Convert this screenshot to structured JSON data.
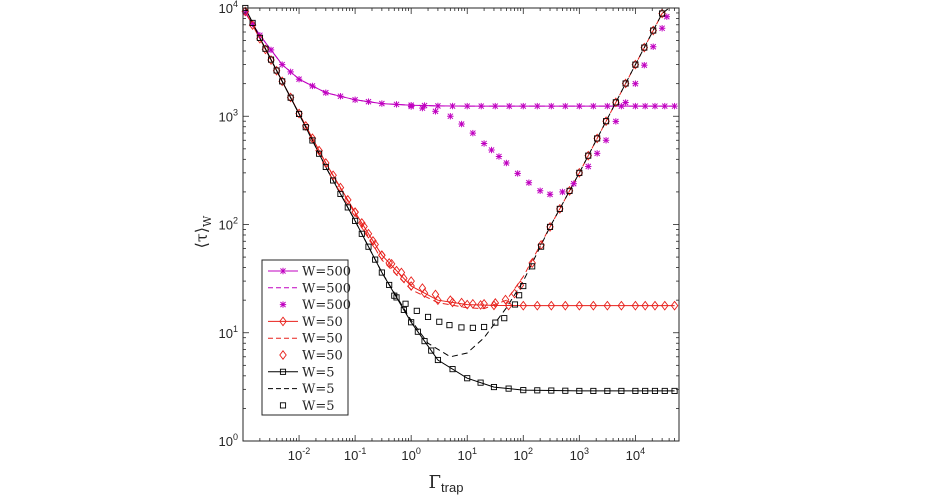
{
  "chart_data": {
    "type": "line",
    "title": "",
    "xlabel": "Γ",
    "xlabel_sub": "trap",
    "ylabel": "⟨τ⟩",
    "ylabel_sub": "W",
    "xscale": "log",
    "yscale": "log",
    "xlim": [
      0.001,
      60000
    ],
    "ylim": [
      1,
      10000
    ],
    "x_ticks": [
      {
        "base": "10",
        "exp": "-2",
        "value": 0.01
      },
      {
        "base": "10",
        "exp": "-1",
        "value": 0.1
      },
      {
        "base": "10",
        "exp": "0",
        "value": 1
      },
      {
        "base": "10",
        "exp": "1",
        "value": 10
      },
      {
        "base": "10",
        "exp": "2",
        "value": 100
      },
      {
        "base": "10",
        "exp": "3",
        "value": 1000
      },
      {
        "base": "10",
        "exp": "4",
        "value": 10000
      }
    ],
    "y_ticks": [
      {
        "base": "10",
        "exp": "0",
        "value": 1
      },
      {
        "base": "10",
        "exp": "1",
        "value": 10
      },
      {
        "base": "10",
        "exp": "2",
        "value": 100
      },
      {
        "base": "10",
        "exp": "3",
        "value": 1000
      },
      {
        "base": "10",
        "exp": "4",
        "value": 10000
      }
    ],
    "grid": false,
    "legend_position": "bottom-left",
    "series": [
      {
        "name": "W=500",
        "style": "solid",
        "marker": "asterisk",
        "color": "#c000c0",
        "points": [
          [
            0.0011,
            9000
          ],
          [
            0.002,
            5600
          ],
          [
            0.005,
            3000
          ],
          [
            0.01,
            2200
          ],
          [
            0.03,
            1650
          ],
          [
            0.1,
            1420
          ],
          [
            0.3,
            1310
          ],
          [
            1,
            1265
          ],
          [
            3,
            1245
          ],
          [
            10,
            1240
          ],
          [
            100,
            1240
          ],
          [
            1000,
            1240
          ],
          [
            10000,
            1240
          ],
          [
            50000,
            1240
          ]
        ]
      },
      {
        "name": "W=500",
        "style": "dashed",
        "marker": "none",
        "color": "#c000c0",
        "points": [
          [
            0.0011,
            9000
          ],
          [
            0.002,
            5600
          ],
          [
            0.005,
            3000
          ],
          [
            0.01,
            2200
          ],
          [
            0.03,
            1650
          ],
          [
            0.1,
            1420
          ],
          [
            0.3,
            1310
          ],
          [
            1,
            1265
          ],
          [
            3,
            1245
          ],
          [
            10,
            1240
          ],
          [
            100,
            1240
          ],
          [
            1000,
            1240
          ],
          [
            10000,
            1240
          ],
          [
            50000,
            1240
          ]
        ]
      },
      {
        "name": "W=500",
        "style": "none",
        "marker": "asterisk",
        "color": "#c000c0",
        "points": [
          [
            1,
            1230
          ],
          [
            2,
            1170
          ],
          [
            5,
            1000
          ],
          [
            10,
            780
          ],
          [
            20,
            560
          ],
          [
            50,
            370
          ],
          [
            100,
            265
          ],
          [
            200,
            205
          ],
          [
            300,
            190
          ],
          [
            500,
            200
          ],
          [
            1000,
            260
          ],
          [
            3000,
            600
          ],
          [
            10000,
            2000
          ],
          [
            30000,
            6500
          ],
          [
            40000,
            9400
          ]
        ]
      },
      {
        "name": "W=50",
        "style": "solid",
        "marker": "diamond",
        "color": "#e8211c",
        "points": [
          [
            0.0011,
            9300
          ],
          [
            0.002,
            5200
          ],
          [
            0.005,
            2100
          ],
          [
            0.01,
            1060
          ],
          [
            0.03,
            370
          ],
          [
            0.1,
            130
          ],
          [
            0.3,
            52
          ],
          [
            1,
            27
          ],
          [
            3,
            20
          ],
          [
            10,
            18.2
          ],
          [
            30,
            17.9
          ],
          [
            100,
            17.8
          ],
          [
            1000,
            17.8
          ],
          [
            10000,
            17.8
          ],
          [
            50000,
            17.8
          ]
        ]
      },
      {
        "name": "W=50",
        "style": "dashed",
        "marker": "none",
        "color": "#e8211c",
        "points": [
          [
            0.0011,
            9300
          ],
          [
            0.002,
            5200
          ],
          [
            0.005,
            2100
          ],
          [
            0.01,
            1060
          ],
          [
            0.03,
            370
          ],
          [
            0.1,
            125
          ],
          [
            0.3,
            47
          ],
          [
            1,
            25
          ],
          [
            3,
            19
          ],
          [
            10,
            17
          ],
          [
            20,
            16.7
          ],
          [
            50,
            20
          ],
          [
            100,
            33
          ],
          [
            300,
            95
          ],
          [
            1000,
            300
          ],
          [
            3000,
            900
          ],
          [
            10000,
            3000
          ],
          [
            30000,
            8900
          ],
          [
            40000,
            10000
          ]
        ]
      },
      {
        "name": "W=50",
        "style": "none",
        "marker": "diamond",
        "color": "#e8211c",
        "points": [
          [
            0.1,
            130
          ],
          [
            0.3,
            52
          ],
          [
            1,
            30
          ],
          [
            2,
            24
          ],
          [
            5,
            20
          ],
          [
            10,
            18.5
          ],
          [
            20,
            18.5
          ],
          [
            40,
            19
          ],
          [
            70,
            23
          ],
          [
            100,
            30
          ],
          [
            300,
            95
          ],
          [
            1000,
            300
          ],
          [
            3000,
            900
          ],
          [
            10000,
            3000
          ],
          [
            30000,
            8900
          ]
        ]
      },
      {
        "name": "W=5",
        "style": "solid",
        "marker": "square",
        "color": "#000000",
        "points": [
          [
            0.0011,
            10000
          ],
          [
            0.002,
            5300
          ],
          [
            0.005,
            2100
          ],
          [
            0.01,
            1050
          ],
          [
            0.03,
            340
          ],
          [
            0.1,
            108
          ],
          [
            0.3,
            36
          ],
          [
            1,
            12.5
          ],
          [
            3,
            5.6
          ],
          [
            10,
            3.8
          ],
          [
            30,
            3.15
          ],
          [
            100,
            2.95
          ],
          [
            1000,
            2.9
          ],
          [
            10000,
            2.9
          ],
          [
            50000,
            2.9
          ]
        ]
      },
      {
        "name": "W=5",
        "style": "dashed",
        "marker": "none",
        "color": "#000000",
        "points": [
          [
            0.0011,
            10000
          ],
          [
            0.002,
            5300
          ],
          [
            0.005,
            2100
          ],
          [
            0.01,
            1050
          ],
          [
            0.03,
            340
          ],
          [
            0.1,
            108
          ],
          [
            0.3,
            36
          ],
          [
            1,
            13
          ],
          [
            2,
            8
          ],
          [
            5,
            6
          ],
          [
            10,
            6.5
          ],
          [
            20,
            9
          ],
          [
            50,
            17
          ],
          [
            100,
            30
          ],
          [
            300,
            95
          ],
          [
            1000,
            300
          ],
          [
            3000,
            900
          ],
          [
            10000,
            3000
          ],
          [
            30000,
            8900
          ],
          [
            40000,
            10000
          ]
        ]
      },
      {
        "name": "W=5",
        "style": "none",
        "marker": "square",
        "color": "#000000",
        "points": [
          [
            0.5,
            22
          ],
          [
            1,
            17
          ],
          [
            2,
            14
          ],
          [
            4,
            12
          ],
          [
            7,
            11.3
          ],
          [
            10,
            11
          ],
          [
            20,
            11.3
          ],
          [
            40,
            13
          ],
          [
            60,
            15
          ],
          [
            100,
            27
          ],
          [
            300,
            95
          ],
          [
            1000,
            300
          ],
          [
            3000,
            900
          ],
          [
            10000,
            3000
          ],
          [
            30000,
            8900
          ]
        ]
      }
    ]
  }
}
